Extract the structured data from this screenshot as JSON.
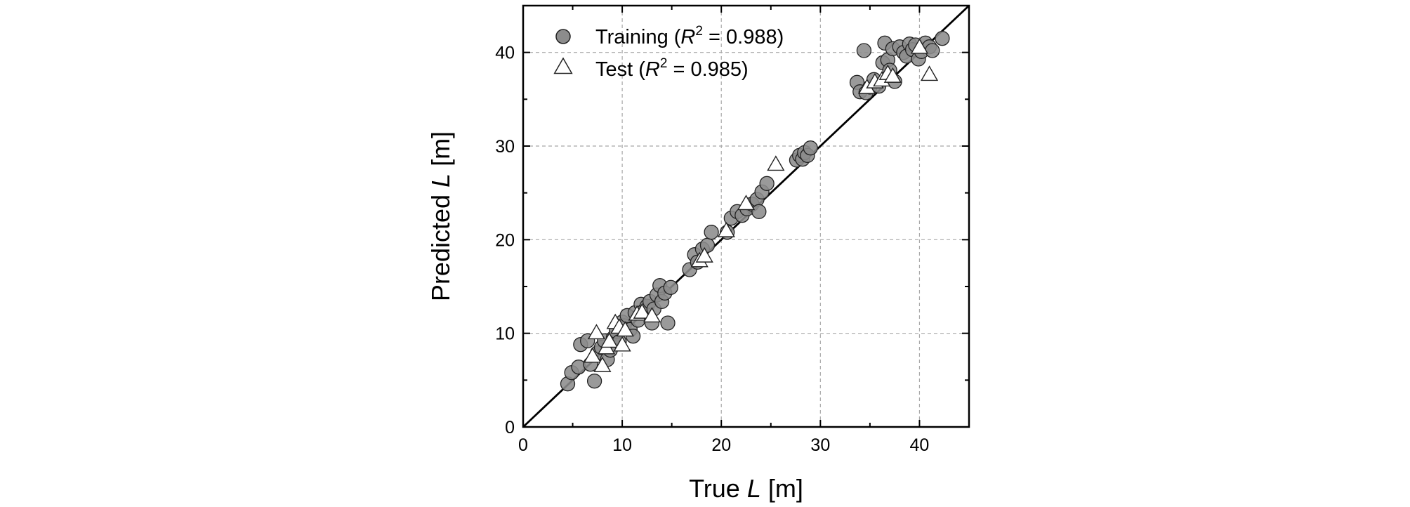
{
  "chart_data": {
    "type": "scatter",
    "xlabel_prefix": "True ",
    "xlabel_var": "L",
    "xlabel_suffix": " [m]",
    "ylabel_prefix": "Predicted ",
    "ylabel_var": "L",
    "ylabel_suffix": " [m]",
    "xlim": [
      0,
      45
    ],
    "ylim": [
      0,
      45
    ],
    "xticks": [
      0,
      10,
      20,
      30,
      40
    ],
    "yticks": [
      0,
      10,
      20,
      30,
      40
    ],
    "grid": true,
    "reference_line": "y = x",
    "legend_position": "top-left",
    "series": [
      {
        "name": "Training",
        "r2_label": "R",
        "r2_sup": "2",
        "r2_value": " = 0.988)",
        "legend_prefix": "Training (",
        "marker": "circle",
        "color": "#8c8c8c",
        "points": [
          [
            4.5,
            4.6
          ],
          [
            4.9,
            5.8
          ],
          [
            5.6,
            6.4
          ],
          [
            5.8,
            8.8
          ],
          [
            6.5,
            9.2
          ],
          [
            6.8,
            6.7
          ],
          [
            7.2,
            4.9
          ],
          [
            7.5,
            7.9
          ],
          [
            7.9,
            8.5
          ],
          [
            8.2,
            9.2
          ],
          [
            8.5,
            7.2
          ],
          [
            8.8,
            8.2
          ],
          [
            9.1,
            9.5
          ],
          [
            9.4,
            10.2
          ],
          [
            9.7,
            9.1
          ],
          [
            10.0,
            11.2
          ],
          [
            10.2,
            10.8
          ],
          [
            10.5,
            11.9
          ],
          [
            10.8,
            10.4
          ],
          [
            11.1,
            9.7
          ],
          [
            11.3,
            12.2
          ],
          [
            11.6,
            11.4
          ],
          [
            11.9,
            13.1
          ],
          [
            12.2,
            12.4
          ],
          [
            12.5,
            12.9
          ],
          [
            12.8,
            13.4
          ],
          [
            13.0,
            11.1
          ],
          [
            13.2,
            12.6
          ],
          [
            13.5,
            14.1
          ],
          [
            13.8,
            15.1
          ],
          [
            14.0,
            13.4
          ],
          [
            14.3,
            14.3
          ],
          [
            14.6,
            11.1
          ],
          [
            14.9,
            14.9
          ],
          [
            16.8,
            16.8
          ],
          [
            17.3,
            18.4
          ],
          [
            17.6,
            17.6
          ],
          [
            18.1,
            19.0
          ],
          [
            18.6,
            19.4
          ],
          [
            19.0,
            20.8
          ],
          [
            20.6,
            20.8
          ],
          [
            21.0,
            22.3
          ],
          [
            21.6,
            23.0
          ],
          [
            22.1,
            22.6
          ],
          [
            22.6,
            23.3
          ],
          [
            23.1,
            23.8
          ],
          [
            23.6,
            24.3
          ],
          [
            23.8,
            23.0
          ],
          [
            24.1,
            25.1
          ],
          [
            24.6,
            26.0
          ],
          [
            27.6,
            28.5
          ],
          [
            27.9,
            29.0
          ],
          [
            28.2,
            28.6
          ],
          [
            28.4,
            29.3
          ],
          [
            28.7,
            29.0
          ],
          [
            29.0,
            29.8
          ],
          [
            33.7,
            36.8
          ],
          [
            34.0,
            35.8
          ],
          [
            34.4,
            40.2
          ],
          [
            34.6,
            35.7
          ],
          [
            35.0,
            36.3
          ],
          [
            35.4,
            37.1
          ],
          [
            35.9,
            36.4
          ],
          [
            36.3,
            38.9
          ],
          [
            36.5,
            41.0
          ],
          [
            36.8,
            39.2
          ],
          [
            37.0,
            38.1
          ],
          [
            37.3,
            40.4
          ],
          [
            37.5,
            36.9
          ],
          [
            38.0,
            40.6
          ],
          [
            38.4,
            40.0
          ],
          [
            38.7,
            39.6
          ],
          [
            39.0,
            40.9
          ],
          [
            39.3,
            40.3
          ],
          [
            39.6,
            40.8
          ],
          [
            39.9,
            39.3
          ],
          [
            40.2,
            40.1
          ],
          [
            40.6,
            41.0
          ],
          [
            41.0,
            40.6
          ],
          [
            41.3,
            40.2
          ],
          [
            42.3,
            41.5
          ]
        ]
      },
      {
        "name": "Test",
        "r2_label": "R",
        "r2_sup": "2",
        "r2_value": " = 0.985)",
        "legend_prefix": "Test (",
        "marker": "triangle",
        "color": "#ffffff",
        "points": [
          [
            7.0,
            7.5
          ],
          [
            7.4,
            10.0
          ],
          [
            8.0,
            6.5
          ],
          [
            8.4,
            8.4
          ],
          [
            8.7,
            9.1
          ],
          [
            9.3,
            11.1
          ],
          [
            9.7,
            10.6
          ],
          [
            10.0,
            8.7
          ],
          [
            10.3,
            10.3
          ],
          [
            11.5,
            12.0
          ],
          [
            12.0,
            12.2
          ],
          [
            13.0,
            11.8
          ],
          [
            17.8,
            17.7
          ],
          [
            18.3,
            18.2
          ],
          [
            20.5,
            20.9
          ],
          [
            22.5,
            23.8
          ],
          [
            25.5,
            28.0
          ],
          [
            34.7,
            36.2
          ],
          [
            35.5,
            36.8
          ],
          [
            36.2,
            37.0
          ],
          [
            36.8,
            37.7
          ],
          [
            37.3,
            37.4
          ],
          [
            40.0,
            40.5
          ],
          [
            41.0,
            37.6
          ]
        ]
      }
    ]
  }
}
